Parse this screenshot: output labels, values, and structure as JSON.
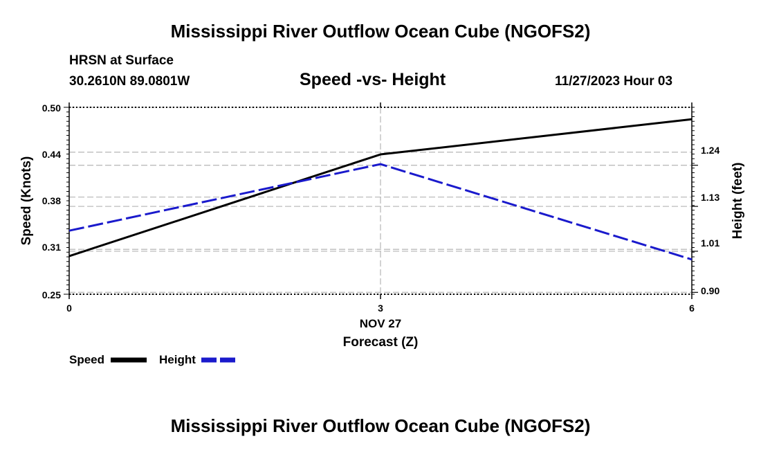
{
  "header": {
    "title": "Mississippi River Outflow Ocean Cube (NGOFS2)",
    "station": "HRSN at Surface",
    "coords": "30.2610N  89.0801W",
    "chart_title": "Speed -vs- Height",
    "datetime": "11/27/2023 Hour 03"
  },
  "footer": {
    "title": "Mississippi River Outflow Ocean Cube (NGOFS2)"
  },
  "colors": {
    "speed": "#000000",
    "height": "#1a1acc",
    "grid": "#bbbbbb"
  },
  "chart_data": {
    "type": "line",
    "title": "Speed -vs- Height",
    "xlabel": "Forecast (Z)",
    "x_date_label": "NOV 27",
    "ylabel_left": "Speed (Knots)",
    "ylabel_right": "Height (feet)",
    "x": [
      0,
      3,
      6
    ],
    "x_ticks": [
      "0",
      "3",
      "6"
    ],
    "xlim": [
      0,
      6
    ],
    "ylim_left": [
      0.25,
      0.5
    ],
    "ylim_right": [
      0.895,
      1.395
    ],
    "left_ticks": [
      "0.25",
      "0.31",
      "0.38",
      "0.44",
      "0.50"
    ],
    "right_ticks": [
      "0.90",
      "1.01",
      "1.13",
      "1.24"
    ],
    "series": [
      {
        "name": "Speed",
        "axis": "left",
        "style": "solid",
        "values": [
          0.301,
          0.437,
          0.484
        ]
      },
      {
        "name": "Height",
        "axis": "right",
        "style": "dashed",
        "values": [
          1.065,
          1.243,
          0.988
        ]
      }
    ],
    "legend": [
      "Speed",
      "Height"
    ],
    "legend_position": "bottom-left",
    "grid": true
  }
}
